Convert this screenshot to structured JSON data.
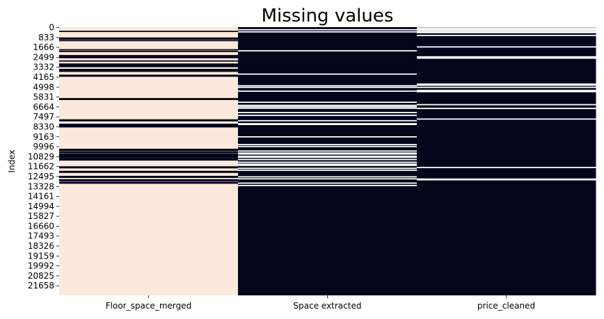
{
  "chart_data": {
    "type": "heatmap",
    "title": "Missing values",
    "xlabel": "",
    "ylabel": "Index",
    "columns": [
      "Floor_space_merged",
      "Space extracted",
      "price_cleaned"
    ],
    "y_ticks": [
      0,
      833,
      1666,
      2499,
      3332,
      4165,
      4998,
      5831,
      6664,
      7497,
      8330,
      9163,
      9996,
      10829,
      11662,
      12495,
      13328,
      14161,
      14994,
      15827,
      16660,
      17493,
      18326,
      19159,
      19992,
      20825,
      21658
    ],
    "y_range": [
      0,
      22490
    ],
    "value_meaning": {
      "missing": "light",
      "present": "dark"
    },
    "colors": {
      "missing": "#fae9dc",
      "present": "#03051a",
      "missing_line_on_dark": "#ffffff",
      "present_line_on_light": "#03051a"
    },
    "missing_default": [
      true,
      false,
      false
    ],
    "exception_rows": [
      [
        [
          360,
          920,
          1000,
          1130,
          1900,
          2040,
          2390,
          2490,
          2560,
          2840,
          3100,
          3160,
          3200,
          3260,
          3310,
          3550,
          3610,
          3700,
          4040,
          4110,
          6000,
          6060,
          7780,
          7850,
          8150,
          8210,
          8290,
          8360,
          10250,
          10320,
          10450,
          10510,
          10640,
          10700,
          10770,
          10840,
          10900,
          11010,
          11080,
          11140,
          11720,
          11790,
          12100,
          12170,
          12520,
          12590,
          12800,
          12870,
          13010,
          13080
        ]
      ],
      [
        [
          220,
          400,
          1990,
          3940,
          4920,
          5050,
          5370,
          6300,
          6560,
          6680,
          6800,
          7160,
          7400,
          7850,
          8100,
          8160,
          9200,
          9850,
          10010,
          10390,
          10560,
          10640,
          10830,
          10910,
          11100,
          11330,
          11490,
          11590,
          11840,
          12000,
          12550,
          12720,
          13080,
          13280
        ]
      ],
      [
        [
          70,
          180,
          260,
          380,
          460,
          700,
          1660,
          2490,
          2600,
          4780,
          4870,
          5050,
          5310,
          5410,
          6500,
          6820,
          7710,
          11770,
          12740,
          12800
        ]
      ]
    ]
  }
}
